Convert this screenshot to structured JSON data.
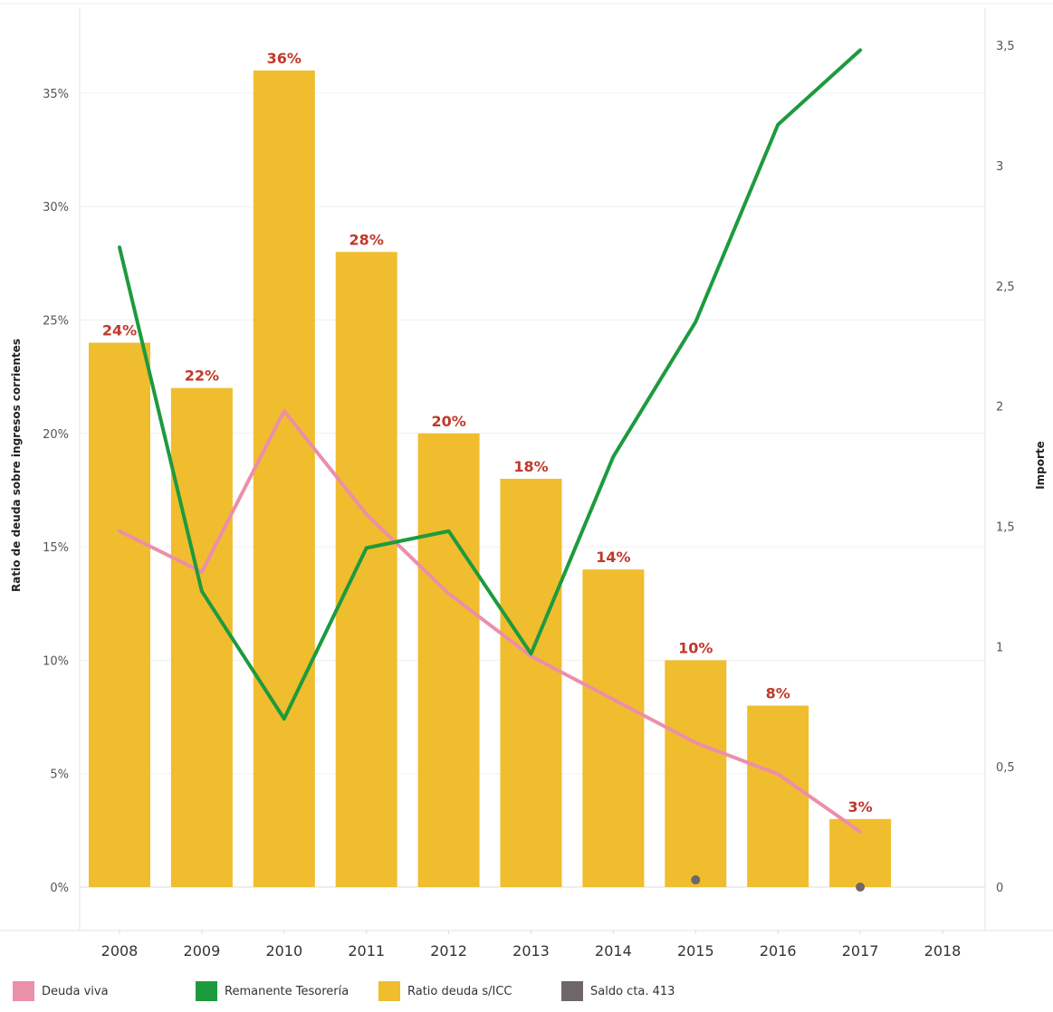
{
  "chart_data": {
    "type": "bar",
    "categories": [
      "2008",
      "2009",
      "2010",
      "2011",
      "2012",
      "2013",
      "2014",
      "2015",
      "2016",
      "2017",
      "2018"
    ],
    "left_axis": {
      "title": "Ratio de deuda sobre ingresos corrientes",
      "ylim": [
        0,
        38
      ],
      "ticks": [
        0,
        5,
        10,
        15,
        20,
        25,
        30,
        35
      ],
      "tick_labels": [
        "0%",
        "5%",
        "10%",
        "15%",
        "20%",
        "25%",
        "30%",
        "35%"
      ]
    },
    "right_axis": {
      "title": "Importe",
      "ylim": [
        0,
        3.6
      ],
      "ticks": [
        0,
        0.5,
        1,
        1.5,
        2,
        2.5,
        3,
        3.5
      ],
      "tick_labels": [
        "0",
        "0,5",
        "1",
        "1,5",
        "2",
        "2,5",
        "3",
        "3,5"
      ]
    },
    "series": [
      {
        "name": "Ratio deuda s/ICC",
        "type": "bar",
        "axis": "left",
        "color": "#f0bd2f",
        "values": [
          24,
          22,
          36,
          28,
          20,
          18,
          14,
          10,
          8,
          3,
          null
        ],
        "labels": [
          "24%",
          "22%",
          "36%",
          "28%",
          "20%",
          "18%",
          "14%",
          "10%",
          "8%",
          "3%",
          ""
        ]
      },
      {
        "name": "Deuda viva",
        "type": "line",
        "axis": "right",
        "color": "#ec8fa8",
        "values": [
          1.48,
          1.31,
          1.98,
          1.55,
          1.22,
          0.96,
          0.78,
          0.6,
          0.47,
          0.23,
          null
        ]
      },
      {
        "name": "Remanente Tesorería",
        "type": "line",
        "axis": "right",
        "color": "#1e9a3e",
        "values": [
          2.66,
          1.23,
          0.7,
          1.41,
          1.48,
          0.97,
          1.79,
          2.35,
          3.17,
          3.48,
          null
        ]
      },
      {
        "name": "Saldo cta. 413",
        "type": "scatter",
        "axis": "right",
        "color": "#6e6669",
        "values": [
          null,
          null,
          null,
          null,
          null,
          null,
          null,
          0.03,
          null,
          0.0,
          null
        ]
      }
    ],
    "legend": [
      {
        "label": "Deuda viva",
        "color": "#ec8fa8"
      },
      {
        "label": "Remanente Tesorería",
        "color": "#1e9a3e"
      },
      {
        "label": "Ratio deuda s/ICC",
        "color": "#f0bd2f"
      },
      {
        "label": "Saldo cta. 413",
        "color": "#6e6669"
      }
    ],
    "legend_position": "bottom",
    "grid": true
  }
}
